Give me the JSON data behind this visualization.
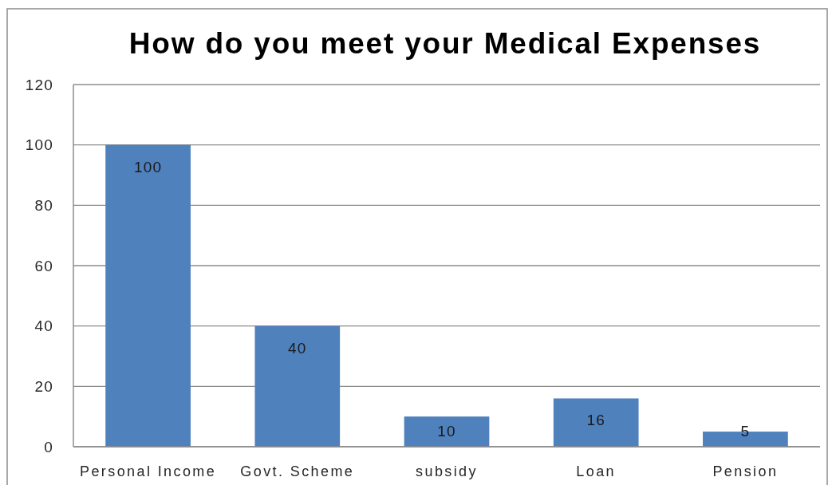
{
  "chart_data": {
    "type": "bar",
    "title": "How do you meet your Medical Expenses",
    "categories": [
      "Personal Income",
      "Govt. Scheme",
      "subsidy",
      "Loan",
      "Pension"
    ],
    "values": [
      100,
      40,
      10,
      16,
      5
    ],
    "color": "#4f81bd",
    "ylim": [
      0,
      120
    ],
    "yticks": [
      0,
      20,
      40,
      60,
      80,
      100,
      120
    ],
    "grid": "y",
    "data_labels": true
  }
}
